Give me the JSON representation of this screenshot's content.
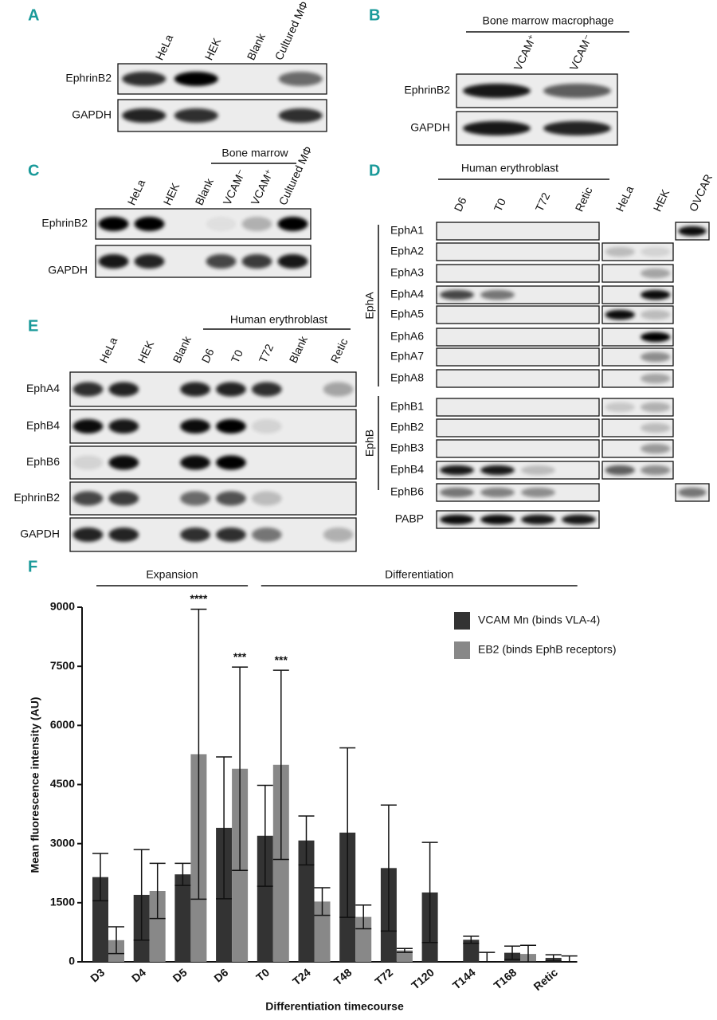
{
  "panels": {
    "a": {
      "letter": "A",
      "lanes": [
        "HeLa",
        "HEK",
        "Blank",
        "Cultured MΦ"
      ],
      "rows": [
        "EphrinB2",
        "GAPDH"
      ]
    },
    "b": {
      "letter": "B",
      "group": "Bone marrow macrophage",
      "lanes": [
        "VCAM⁺",
        "VCAM⁻"
      ],
      "rows": [
        "EphrinB2",
        "GAPDH"
      ]
    },
    "c": {
      "letter": "C",
      "group": "Bone marrow",
      "lanes": [
        "HeLa",
        "HEK",
        "Blank",
        "VCAM⁻",
        "VCAM⁺",
        "Cultured MΦ"
      ],
      "rows": [
        "EphrinB2",
        "GAPDH"
      ]
    },
    "d": {
      "letter": "D",
      "group": "Human erythroblast",
      "lanes": [
        "D6",
        "T0",
        "T72",
        "Retic",
        "HeLa",
        "HEK",
        "OVCAR"
      ],
      "families": [
        "EphA",
        "EphB"
      ],
      "rows": [
        "EphA1",
        "EphA2",
        "EphA3",
        "EphA4",
        "EphA5",
        "EphA6",
        "EphA7",
        "EphA8",
        "EphB1",
        "EphB2",
        "EphB3",
        "EphB4",
        "EphB6",
        "PABP"
      ]
    },
    "e": {
      "letter": "E",
      "group": "Human erythroblast",
      "lanes": [
        "HeLa",
        "HEK",
        "Blank",
        "D6",
        "T0",
        "T72",
        "Blank",
        "Retic"
      ],
      "rows": [
        "EphA4",
        "EphB4",
        "EphB6",
        "EphrinB2",
        "GAPDH"
      ]
    }
  },
  "chart_data": {
    "type": "bar",
    "letter": "F",
    "x_label": "Differentiation timecourse",
    "y_label": "Mean fluorescence intensity (AU)",
    "categories": [
      "D3",
      "D4",
      "D5",
      "D6",
      "T0",
      "T24",
      "T48",
      "T72",
      "T120",
      "T144",
      "T168",
      "Retic"
    ],
    "series": [
      {
        "name": "VCAM Mn (binds VLA-4)",
        "color": "#333333",
        "values": [
          2150,
          1700,
          2220,
          3400,
          3200,
          3080,
          3280,
          2380,
          1760,
          560,
          230,
          100
        ],
        "errors": [
          600,
          1150,
          280,
          1800,
          1280,
          620,
          2150,
          1600,
          1270,
          90,
          170,
          80
        ]
      },
      {
        "name": "EB2 (binds EphB receptors)",
        "color": "#888888",
        "values": [
          550,
          1800,
          5270,
          4900,
          5000,
          1530,
          1140,
          290,
          0,
          0,
          200,
          0
        ],
        "errors": [
          340,
          700,
          3680,
          2580,
          2400,
          350,
          300,
          50,
          0,
          240,
          220,
          150
        ]
      }
    ],
    "annotations": [
      {
        "text": "****",
        "category": "D5"
      },
      {
        "text": "***",
        "category": "D6"
      },
      {
        "text": "***",
        "category": "T0"
      }
    ],
    "brackets": [
      {
        "text": "Expansion",
        "from": "D3",
        "to": "D6"
      },
      {
        "text": "Differentiation",
        "from": "T0",
        "to": "Retic"
      }
    ],
    "ylim": [
      0,
      9000
    ],
    "yticks": [
      0,
      1500,
      3000,
      4500,
      6000,
      7500,
      9000
    ]
  }
}
